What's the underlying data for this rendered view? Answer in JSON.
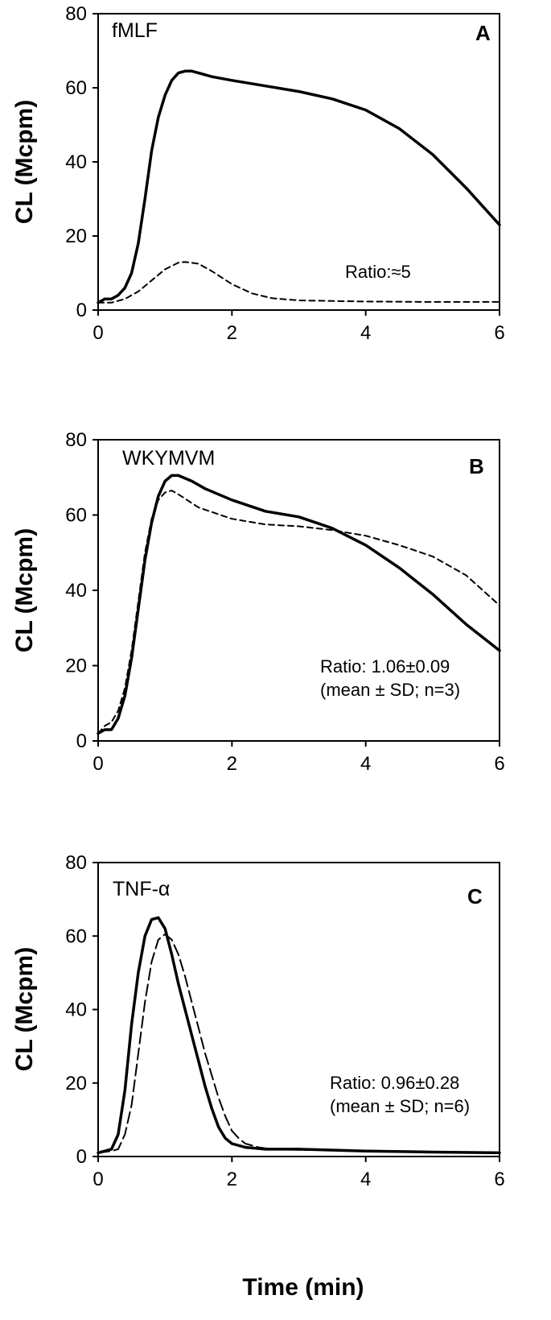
{
  "colors": {
    "line": "#000000",
    "background": "#ffffff"
  },
  "figure": {
    "xlabel": "Time (min)"
  },
  "chart_data": [
    {
      "id": "A",
      "type": "line",
      "panel_label": "A",
      "stimulus": "fMLF",
      "ylabel": "CL (Mcpm)",
      "xlim": [
        0,
        6
      ],
      "ylim": [
        0,
        80
      ],
      "xticks": [
        "0",
        "2",
        "4",
        "6"
      ],
      "yticks": [
        "0",
        "20",
        "40",
        "60",
        "80"
      ],
      "annotation_lines": [
        "Ratio:≈5"
      ],
      "series": [
        {
          "name": "solid",
          "style": "solid",
          "x": [
            0,
            0.1,
            0.2,
            0.3,
            0.4,
            0.5,
            0.6,
            0.7,
            0.8,
            0.9,
            1.0,
            1.1,
            1.2,
            1.3,
            1.4,
            1.5,
            1.7,
            2.0,
            2.5,
            3.0,
            3.5,
            4.0,
            4.5,
            5.0,
            5.5,
            6.0
          ],
          "y": [
            2,
            3,
            3,
            4,
            6,
            10,
            18,
            30,
            43,
            52,
            58,
            62,
            64,
            64.5,
            64.5,
            64,
            63,
            62,
            60.5,
            59,
            57,
            54,
            49,
            42,
            33,
            23
          ]
        },
        {
          "name": "dashed",
          "style": "dashed",
          "x": [
            0,
            0.2,
            0.4,
            0.6,
            0.8,
            1.0,
            1.2,
            1.3,
            1.5,
            1.7,
            2.0,
            2.3,
            2.6,
            3.0,
            4.0,
            5.0,
            6.0
          ],
          "y": [
            2,
            2,
            3,
            5,
            8,
            11,
            12.8,
            13,
            12.5,
            10.5,
            7,
            4.5,
            3.2,
            2.6,
            2.3,
            2.2,
            2.2
          ]
        }
      ]
    },
    {
      "id": "B",
      "type": "line",
      "panel_label": "B",
      "stimulus": "WKYMVM",
      "ylabel": "CL (Mcpm)",
      "xlim": [
        0,
        6
      ],
      "ylim": [
        0,
        80
      ],
      "xticks": [
        "0",
        "2",
        "4",
        "6"
      ],
      "yticks": [
        "0",
        "20",
        "40",
        "60",
        "80"
      ],
      "annotation_lines": [
        "Ratio: 1.06±0.09",
        "(mean ± SD; n=3)"
      ],
      "series": [
        {
          "name": "solid",
          "style": "solid",
          "x": [
            0,
            0.1,
            0.2,
            0.3,
            0.4,
            0.5,
            0.6,
            0.7,
            0.8,
            0.9,
            1.0,
            1.1,
            1.2,
            1.4,
            1.6,
            2.0,
            2.5,
            3.0,
            3.5,
            4.0,
            4.5,
            5.0,
            5.5,
            6.0
          ],
          "y": [
            2,
            3,
            3,
            6,
            12,
            22,
            35,
            48,
            58,
            65,
            69,
            70.5,
            70.5,
            69,
            67,
            64,
            61,
            59.5,
            56.5,
            52,
            46,
            39,
            31,
            24
          ]
        },
        {
          "name": "dashed",
          "style": "dashed",
          "x": [
            0,
            0.1,
            0.2,
            0.3,
            0.4,
            0.5,
            0.6,
            0.7,
            0.8,
            0.9,
            1.0,
            1.1,
            1.2,
            1.5,
            2.0,
            2.5,
            3.0,
            3.5,
            4.0,
            4.5,
            5.0,
            5.5,
            6.0
          ],
          "y": [
            2,
            4,
            5,
            8,
            14,
            24,
            37,
            50,
            59,
            64,
            66,
            66.5,
            65.5,
            62,
            59,
            57.5,
            57,
            56,
            54.5,
            52,
            49,
            44,
            36
          ]
        }
      ]
    },
    {
      "id": "C",
      "type": "line",
      "panel_label": "C",
      "stimulus": "TNF-α",
      "ylabel": "CL (Mcpm)",
      "xlim": [
        0,
        6
      ],
      "ylim": [
        0,
        80
      ],
      "xticks": [
        "0",
        "2",
        "4",
        "6"
      ],
      "yticks": [
        "0",
        "20",
        "40",
        "60",
        "80"
      ],
      "annotation_lines": [
        "Ratio: 0.96±0.28",
        "(mean ± SD; n=6)"
      ],
      "series": [
        {
          "name": "solid",
          "style": "solid",
          "x": [
            0,
            0.1,
            0.2,
            0.3,
            0.4,
            0.5,
            0.6,
            0.7,
            0.8,
            0.9,
            1.0,
            1.1,
            1.2,
            1.3,
            1.4,
            1.5,
            1.6,
            1.7,
            1.8,
            1.9,
            2.0,
            2.2,
            2.5,
            3.0,
            4.0,
            5.0,
            6.0
          ],
          "y": [
            1,
            1.5,
            2,
            6,
            18,
            36,
            50,
            60,
            64.5,
            65,
            62,
            55,
            47,
            40,
            33,
            26,
            19,
            13,
            8,
            5,
            3.5,
            2.5,
            2,
            2,
            1.5,
            1.2,
            1
          ]
        },
        {
          "name": "dashed",
          "style": "long-dashed",
          "x": [
            0,
            0.2,
            0.3,
            0.4,
            0.5,
            0.6,
            0.7,
            0.8,
            0.9,
            1.0,
            1.1,
            1.2,
            1.3,
            1.4,
            1.5,
            1.6,
            1.7,
            1.8,
            1.9,
            2.0,
            2.1,
            2.2,
            2.4,
            2.6,
            3.0,
            4.0,
            5.0,
            6.0
          ],
          "y": [
            1,
            1.5,
            2,
            6,
            14,
            28,
            42,
            53,
            59,
            60.5,
            59,
            55,
            49,
            42,
            35,
            28,
            22,
            16,
            11,
            7,
            5,
            3.5,
            2.5,
            2,
            1.8,
            1.6,
            1.3,
            1
          ]
        }
      ]
    }
  ]
}
